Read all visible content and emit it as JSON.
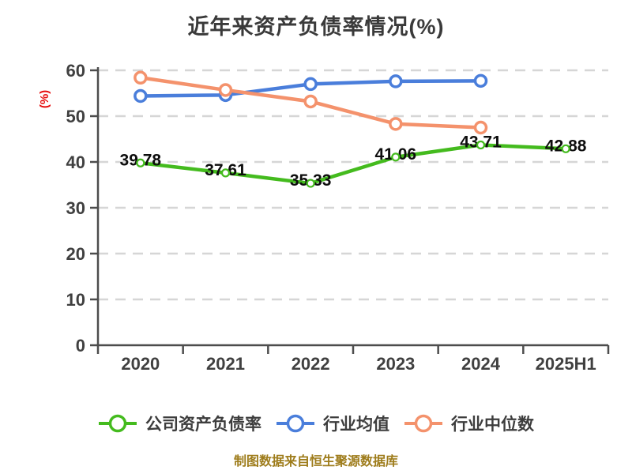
{
  "title": "近年来资产负债率情况(%)",
  "footer": {
    "text": "制图数据来自恒生聚源数据库",
    "color": "#9e7c1b"
  },
  "chart_data": {
    "type": "line",
    "title": "近年来资产负债率情况(%)",
    "xlabel": "",
    "ylabel": "(%)",
    "ylabel_color": "#e60c0c",
    "categories": [
      "2020",
      "2021",
      "2022",
      "2023",
      "2024",
      "2025H1"
    ],
    "ylim": [
      0,
      60
    ],
    "yticks": [
      0,
      10,
      20,
      30,
      40,
      50,
      60
    ],
    "grid": "horizontal-dashed",
    "legend_position": "bottom",
    "series": [
      {
        "name": "公司资产负债率",
        "color": "#44bb1e",
        "values": [
          39.78,
          37.61,
          35.33,
          41.06,
          43.71,
          42.88
        ],
        "data_labels": true,
        "marker": "small-dot"
      },
      {
        "name": "行业均值",
        "color": "#4a7edb",
        "values": [
          54.4,
          54.6,
          57.0,
          57.6,
          57.7,
          null
        ],
        "data_labels": false,
        "marker": "ring"
      },
      {
        "name": "行业中位数",
        "color": "#f4926c",
        "values": [
          58.4,
          55.7,
          53.2,
          48.3,
          47.5,
          null
        ],
        "data_labels": false,
        "marker": "ring"
      }
    ]
  }
}
